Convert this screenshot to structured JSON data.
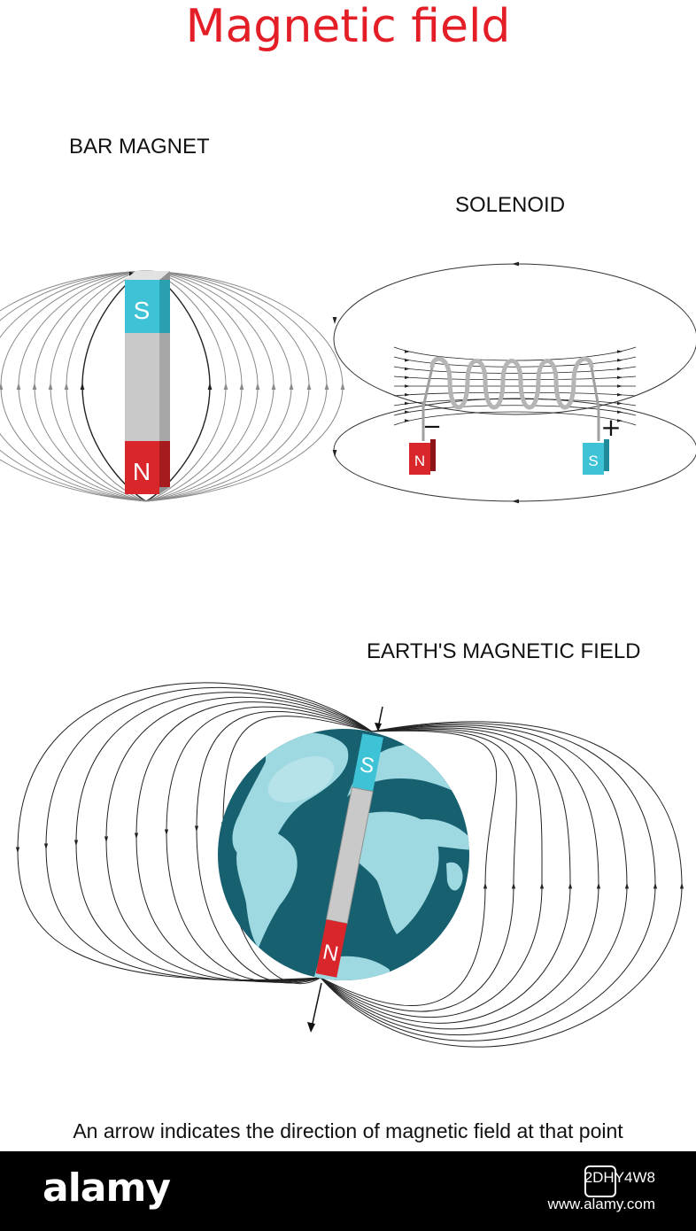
{
  "title": "Magnetic field",
  "colors": {
    "title": "#e41e26",
    "magnet_blue": "#3ec3d6",
    "magnet_red": "#d8262a",
    "magnet_gray": "#c9c9c9",
    "field_line": "#222222",
    "field_line_light": "#8a8a8a",
    "ocean": "#176070",
    "land": "#9ed9e2"
  },
  "bar_magnet": {
    "label": "BAR MAGNET",
    "pole_top": "S",
    "pole_bottom": "N"
  },
  "solenoid": {
    "label": "SOLENOID",
    "pole_left": "N",
    "pole_right": "S",
    "terminal_left": "−",
    "terminal_right": "+"
  },
  "earth": {
    "label": "EARTH'S MAGNETIC FIELD",
    "pole_top": "S",
    "pole_bottom": "N"
  },
  "caption": "An arrow indicates the direction of magnetic field at that point",
  "footer": {
    "logo": "alamy",
    "image_id": "2DHY4W8",
    "site": "www.alamy.com"
  }
}
